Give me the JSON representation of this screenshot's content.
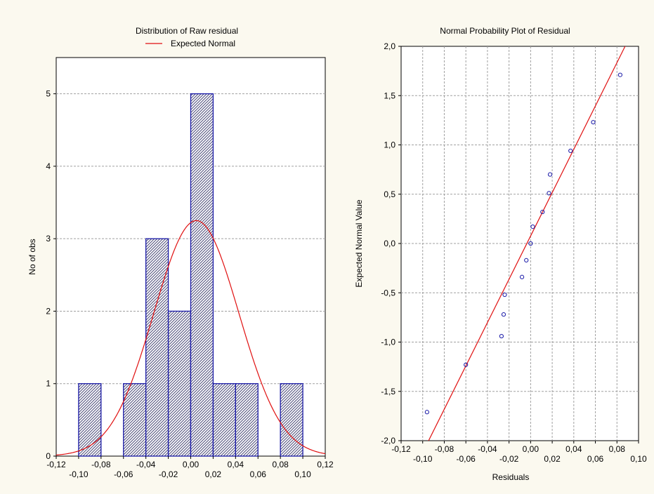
{
  "chart_data": [
    {
      "type": "bar",
      "title": "Distribution of Raw residual",
      "legend": [
        {
          "name": "Expected Normal",
          "color": "#e01010",
          "position": "top"
        }
      ],
      "xlabel": "",
      "ylabel": "No of obs",
      "xlim": [
        -0.12,
        0.12
      ],
      "ylim": [
        0,
        5.5
      ],
      "x_ticks_top": [
        "-0,12",
        "-0,08",
        "-0,04",
        "0,00",
        "0,04",
        "0,08",
        "0,12"
      ],
      "x_ticks_bottom": [
        "-0,10",
        "-0,06",
        "-0,02",
        "0,02",
        "0,06",
        "0,10"
      ],
      "y_ticks": [
        "0",
        "1",
        "2",
        "3",
        "4",
        "5"
      ],
      "bins": [
        {
          "from": -0.1,
          "to": -0.08,
          "count": 1
        },
        {
          "from": -0.08,
          "to": -0.06,
          "count": 0
        },
        {
          "from": -0.06,
          "to": -0.04,
          "count": 1
        },
        {
          "from": -0.04,
          "to": -0.02,
          "count": 3
        },
        {
          "from": -0.02,
          "to": 0.0,
          "count": 2
        },
        {
          "from": 0.0,
          "to": 0.02,
          "count": 5
        },
        {
          "from": 0.02,
          "to": 0.04,
          "count": 1
        },
        {
          "from": 0.04,
          "to": 0.06,
          "count": 1
        },
        {
          "from": 0.06,
          "to": 0.08,
          "count": 0
        },
        {
          "from": 0.08,
          "to": 0.1,
          "count": 1
        }
      ],
      "normal_curve": {
        "mean": 0.005,
        "sd": 0.038,
        "peak": 3.25
      },
      "grid": true,
      "bar_color": "#1a1aa8",
      "curve_color": "#e01010"
    },
    {
      "type": "scatter",
      "title": "Normal Probability Plot of Residual",
      "xlabel": "Residuals",
      "ylabel": "Expected Normal Value",
      "xlim": [
        -0.12,
        0.1
      ],
      "ylim": [
        -2.0,
        2.0
      ],
      "x_ticks_top": [
        "-0,12",
        "-0,08",
        "-0,04",
        "0,00",
        "0,04",
        "0,08"
      ],
      "x_ticks_bottom": [
        "-0,10",
        "-0,06",
        "-0,02",
        "0,02",
        "0,06",
        "0,10"
      ],
      "y_ticks": [
        "-2,0",
        "-1,5",
        "-1,0",
        "-0,5",
        "0,0",
        "0,5",
        "1,0",
        "1,5",
        "2,0"
      ],
      "points": [
        {
          "x": -0.096,
          "y": -1.71
        },
        {
          "x": -0.06,
          "y": -1.23
        },
        {
          "x": -0.027,
          "y": -0.94
        },
        {
          "x": -0.025,
          "y": -0.72
        },
        {
          "x": -0.024,
          "y": -0.52
        },
        {
          "x": -0.008,
          "y": -0.34
        },
        {
          "x": -0.004,
          "y": -0.17
        },
        {
          "x": 0.0,
          "y": 0.0
        },
        {
          "x": 0.002,
          "y": 0.17
        },
        {
          "x": 0.011,
          "y": 0.32
        },
        {
          "x": 0.017,
          "y": 0.51
        },
        {
          "x": 0.018,
          "y": 0.7
        },
        {
          "x": 0.037,
          "y": 0.94
        },
        {
          "x": 0.058,
          "y": 1.23
        },
        {
          "x": 0.083,
          "y": 1.71
        }
      ],
      "fit_line": {
        "x1": -0.1,
        "y1": -2.12,
        "x2": 0.093,
        "y2": 2.12
      },
      "grid": true,
      "point_color": "#1a1aa8",
      "line_color": "#e01010"
    }
  ]
}
